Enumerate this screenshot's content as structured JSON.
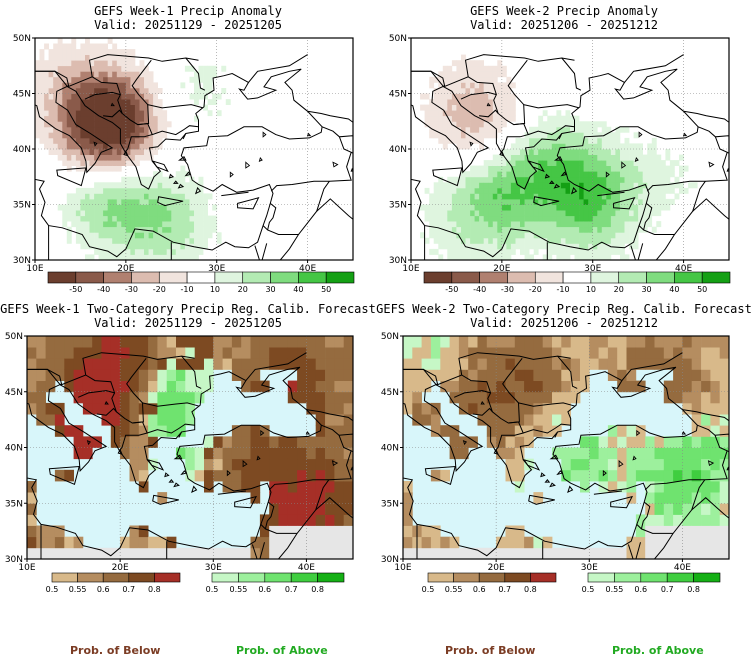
{
  "colors": {
    "anom_scale": [
      "#6b3e2e",
      "#8a5a4a",
      "#b08070",
      "#dcbcb0",
      "#f1e4de",
      "#ffffff",
      "#dff5df",
      "#b3ebb3",
      "#7fdc7f",
      "#45c645",
      "#14a014"
    ],
    "below_scale": [
      "#d8b98a",
      "#b58d60",
      "#956b3f",
      "#7d4a22",
      "#a62f27"
    ],
    "above_scale": [
      "#c6f7c6",
      "#9df09d",
      "#6fe36f",
      "#3fce3f",
      "#15b015"
    ],
    "sea": "#d8f6fa",
    "missing": "#e6e6e6",
    "below_label": "#7b3c24",
    "above_label": "#22aa22"
  },
  "panels": [
    {
      "title_line1": "GEFS Week-1 Precip Anomaly",
      "title_line2": "Valid: 20251129 - 20251205"
    },
    {
      "title_line1": "GEFS Week-2 Precip Anomaly",
      "title_line2": "Valid: 20251206 - 20251212"
    },
    {
      "title_line1": "GEFS Week-1 Two-Category Precip Reg. Calib. Forecast",
      "title_line2": "Valid: 20251129 - 20251205"
    },
    {
      "title_line1": "GEFS Week-2 Two-Category Precip Reg. Calib. Forecast",
      "title_line2": "Valid: 20251206 - 20251212"
    }
  ],
  "axes": {
    "lat_labels": [
      "50N",
      "45N",
      "40N",
      "35N",
      "30N"
    ],
    "lon_labels": [
      "10E",
      "20E",
      "30E",
      "40E"
    ],
    "lat_range": [
      30,
      50
    ],
    "lon_range": [
      10,
      45
    ]
  },
  "chart_data": [
    {
      "type": "heatmap",
      "title": "GEFS Week-1 Precip Anomaly",
      "subtitle": "Valid: 20251129 - 20251205",
      "colorbar_ticks": [
        "-50",
        "-40",
        "-30",
        "-20",
        "-10",
        "10",
        "20",
        "30",
        "40",
        "50"
      ],
      "features": [
        {
          "kind": "dry",
          "lon": 17.8,
          "lat": 42.5,
          "value": -45
        },
        {
          "kind": "dry",
          "lon": 19.5,
          "lat": 41.0,
          "value": -30
        },
        {
          "kind": "dry",
          "lon": 14.0,
          "lat": 40.5,
          "value": -20
        },
        {
          "kind": "dry",
          "lon": 12.0,
          "lat": 46.5,
          "value": -10
        },
        {
          "kind": "wet",
          "lon": 17.5,
          "lat": 36.5,
          "value": 35
        },
        {
          "kind": "wet",
          "lon": 22.0,
          "lat": 34.5,
          "value": 20
        },
        {
          "kind": "wet",
          "lon": 26.0,
          "lat": 33.0,
          "value": 15
        },
        {
          "kind": "wet",
          "lon": 11.0,
          "lat": 39.5,
          "value": 10
        },
        {
          "kind": "wet",
          "lon": 28.0,
          "lat": 45.5,
          "value": 12
        }
      ]
    },
    {
      "type": "heatmap",
      "title": "GEFS Week-2 Precip Anomaly",
      "subtitle": "Valid: 20251206 - 20251212",
      "colorbar_ticks": [
        "-50",
        "-40",
        "-30",
        "-20",
        "-10",
        "10",
        "20",
        "30",
        "40",
        "50"
      ],
      "features": [
        {
          "kind": "wet",
          "lon": 20.0,
          "lat": 36.0,
          "value": 32
        },
        {
          "kind": "wet",
          "lon": 30.0,
          "lat": 35.5,
          "value": 40
        },
        {
          "kind": "wet",
          "lon": 25.0,
          "lat": 38.5,
          "value": 25
        },
        {
          "kind": "wet",
          "lon": 15.0,
          "lat": 34.0,
          "value": 15
        },
        {
          "kind": "wet",
          "lon": 38.0,
          "lat": 38.0,
          "value": 12
        },
        {
          "kind": "dry",
          "lon": 18.5,
          "lat": 42.0,
          "value": -25
        },
        {
          "kind": "dry",
          "lon": 14.5,
          "lat": 44.0,
          "value": -10
        },
        {
          "kind": "dry",
          "lon": 40.0,
          "lat": 45.0,
          "value": -8
        }
      ]
    },
    {
      "type": "heatmap",
      "title": "GEFS Week-1 Two-Category Precip Reg. Calib. Forecast",
      "subtitle": "Valid: 20251129 - 20251205",
      "colorbar_below_ticks": [
        "0.5",
        "0.55",
        "0.6",
        "0.7",
        "0.8"
      ],
      "colorbar_above_ticks": [
        "0.5",
        "0.55",
        "0.6",
        "0.7",
        "0.8"
      ],
      "features": [
        {
          "kind": "below",
          "lon": 20.0,
          "lat": 47.0,
          "value": 0.8
        },
        {
          "kind": "below",
          "lon": 38.0,
          "lat": 45.0,
          "value": 0.7
        },
        {
          "kind": "below",
          "lon": 16.0,
          "lat": 41.0,
          "value": 0.75
        },
        {
          "kind": "below",
          "lon": 33.0,
          "lat": 38.0,
          "value": 0.65
        },
        {
          "kind": "below",
          "lon": 40.0,
          "lat": 35.0,
          "value": 0.8
        },
        {
          "kind": "above",
          "lon": 24.5,
          "lat": 44.5,
          "value": 0.7
        },
        {
          "kind": "above",
          "lon": 29.0,
          "lat": 39.0,
          "value": 0.6
        },
        {
          "kind": "above",
          "lon": 38.0,
          "lat": 39.5,
          "value": 0.55
        }
      ]
    },
    {
      "type": "heatmap",
      "title": "GEFS Week-2 Two-Category Precip Reg. Calib. Forecast",
      "subtitle": "Valid: 20251206 - 20251212",
      "colorbar_below_ticks": [
        "0.5",
        "0.55",
        "0.6",
        "0.7",
        "0.8"
      ],
      "colorbar_above_ticks": [
        "0.5",
        "0.55",
        "0.6",
        "0.7",
        "0.8"
      ],
      "features": [
        {
          "kind": "below",
          "lon": 22.0,
          "lat": 46.0,
          "value": 0.65
        },
        {
          "kind": "below",
          "lon": 38.0,
          "lat": 46.0,
          "value": 0.6
        },
        {
          "kind": "below",
          "lon": 15.0,
          "lat": 43.0,
          "value": 0.6
        },
        {
          "kind": "above",
          "lon": 28.0,
          "lat": 39.0,
          "value": 0.6
        },
        {
          "kind": "above",
          "lon": 40.0,
          "lat": 38.0,
          "value": 0.65
        },
        {
          "kind": "above",
          "lon": 14.0,
          "lat": 47.5,
          "value": 0.55
        }
      ]
    }
  ],
  "footer": {
    "below_label": "Prob. of Below",
    "above_label": "Prob. of Above"
  }
}
